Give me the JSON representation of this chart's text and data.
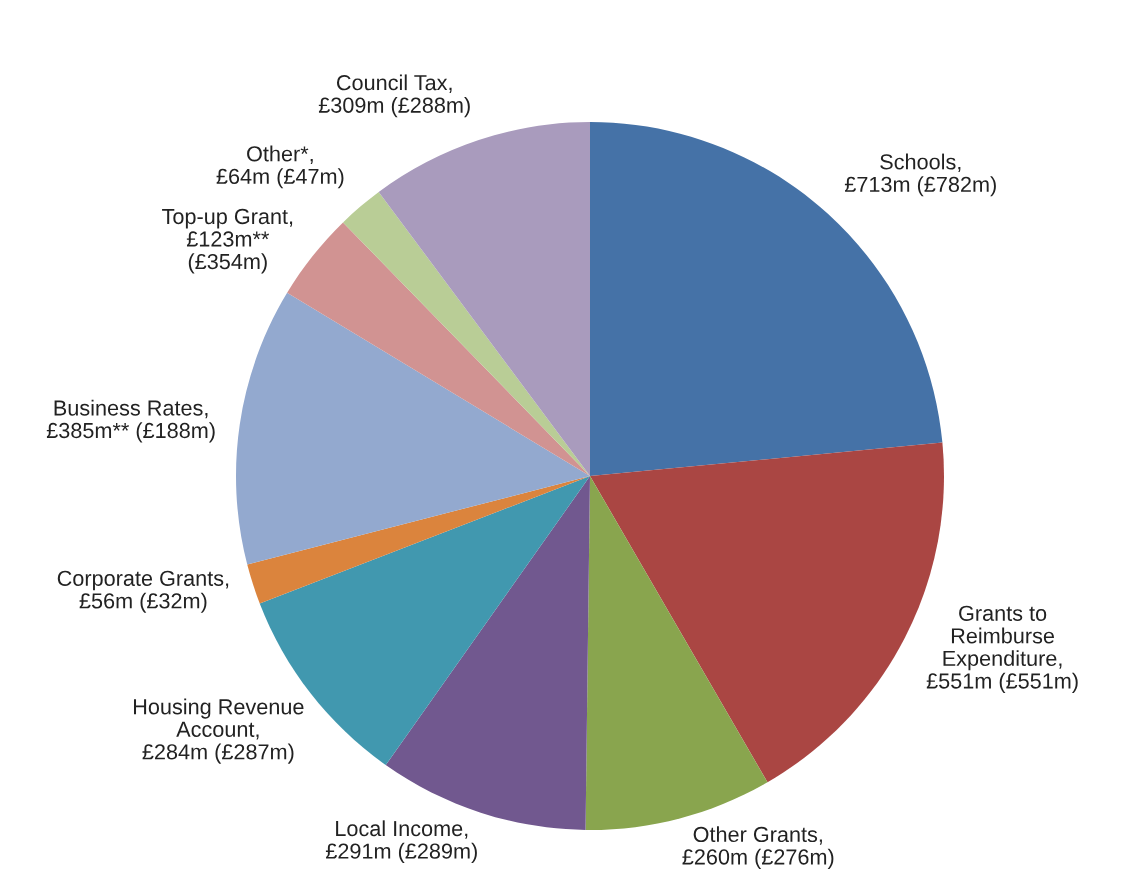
{
  "chart_data": {
    "type": "pie",
    "categories": [
      "Schools,\n£713m (£782m)",
      "Grants to\nReimburse\nExpenditure,\n£551m (£551m)",
      "Other Grants,\n£260m (£276m)",
      "Local Income,\n£291m (£289m)",
      "Housing Revenue\nAccount,\n£284m (£287m)",
      "Corporate Grants,\n£56m (£32m)",
      "Business Rates,\n£385m** (£188m)",
      "Top-up Grant,\n£123m**\n(£354m)",
      "Other*,\n£64m (£47m)",
      "Council Tax,\n£309m (£288m)"
    ],
    "values": [
      23.49,
      18.15,
      8.56,
      9.59,
      9.35,
      1.84,
      12.68,
      4.05,
      2.11,
      10.18
    ],
    "colors": [
      "#4572a7",
      "#aa4643",
      "#89a54e",
      "#71588f",
      "#4198af",
      "#db843d",
      "#93a9cf",
      "#d19392",
      "#b9cd96",
      "#a99bbd"
    ]
  }
}
